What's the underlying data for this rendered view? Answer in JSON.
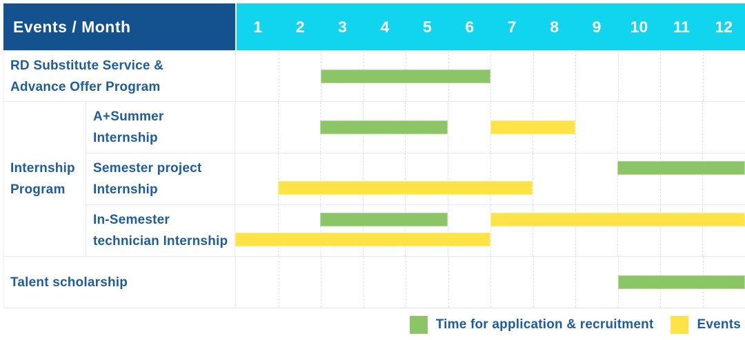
{
  "chart_data": {
    "type": "bar",
    "variant": "gantt",
    "title": "Events / Month",
    "categories": [
      "1",
      "2",
      "3",
      "4",
      "5",
      "6",
      "7",
      "8",
      "9",
      "10",
      "11",
      "12"
    ],
    "x_axis_unit": "month",
    "x_range": [
      1,
      12
    ],
    "grid": "dashed-vertical-month-lines",
    "legend_position": "bottom-right",
    "colors": {
      "header_bg": "#14528f",
      "months_bg": "#11d5ee",
      "header_text": "#ffffff",
      "label_text": "#1d5c9e",
      "recruitment": "#8cc565",
      "event": "#fde345",
      "grid_line": "#e2e2e2"
    },
    "group_label_lines": [
      "Internship",
      "Program"
    ],
    "rows": [
      {
        "label": "RD Substitute Service & Advance Offer Program",
        "label_lines": [
          "RD Substitute Service &",
          "Advance Offer Program"
        ],
        "group": null,
        "lanes": 1,
        "bars": [
          {
            "type": "recruitment",
            "start_month": 3,
            "end_month": 6,
            "lane": 0
          }
        ]
      },
      {
        "label": "A+Summer Internship",
        "label_lines": [
          "A+Summer",
          "Internship"
        ],
        "group": "Internship Program",
        "lanes": 1,
        "bars": [
          {
            "type": "recruitment",
            "start_month": 3,
            "end_month": 5,
            "lane": 0
          },
          {
            "type": "event",
            "start_month": 7,
            "end_month": 8,
            "lane": 0
          }
        ]
      },
      {
        "label": "Semester project Internship",
        "label_lines": [
          "Semester project",
          "Internship"
        ],
        "group": "Internship Program",
        "lanes": 2,
        "bars": [
          {
            "type": "recruitment",
            "start_month": 10,
            "end_month": 12,
            "lane": 0
          },
          {
            "type": "event",
            "start_month": 2,
            "end_month": 7,
            "lane": 1
          }
        ]
      },
      {
        "label": "In-Semester technician Internship",
        "label_lines": [
          "In-Semester",
          "technician Internship"
        ],
        "group": "Internship Program",
        "lanes": 2,
        "bars": [
          {
            "type": "recruitment",
            "start_month": 3,
            "end_month": 5,
            "lane": 0
          },
          {
            "type": "event",
            "start_month": 7,
            "end_month": 12,
            "lane": 0
          },
          {
            "type": "event",
            "start_month": 1,
            "end_month": 6,
            "lane": 1
          }
        ]
      },
      {
        "label": "Talent scholarship",
        "label_lines": [
          "Talent scholarship"
        ],
        "group": null,
        "lanes": 1,
        "bars": [
          {
            "type": "recruitment",
            "start_month": 10,
            "end_month": 12,
            "lane": 0
          }
        ]
      }
    ],
    "legend": {
      "recruitment_label": "Time for application & recruitment",
      "events_label": "Events"
    }
  }
}
